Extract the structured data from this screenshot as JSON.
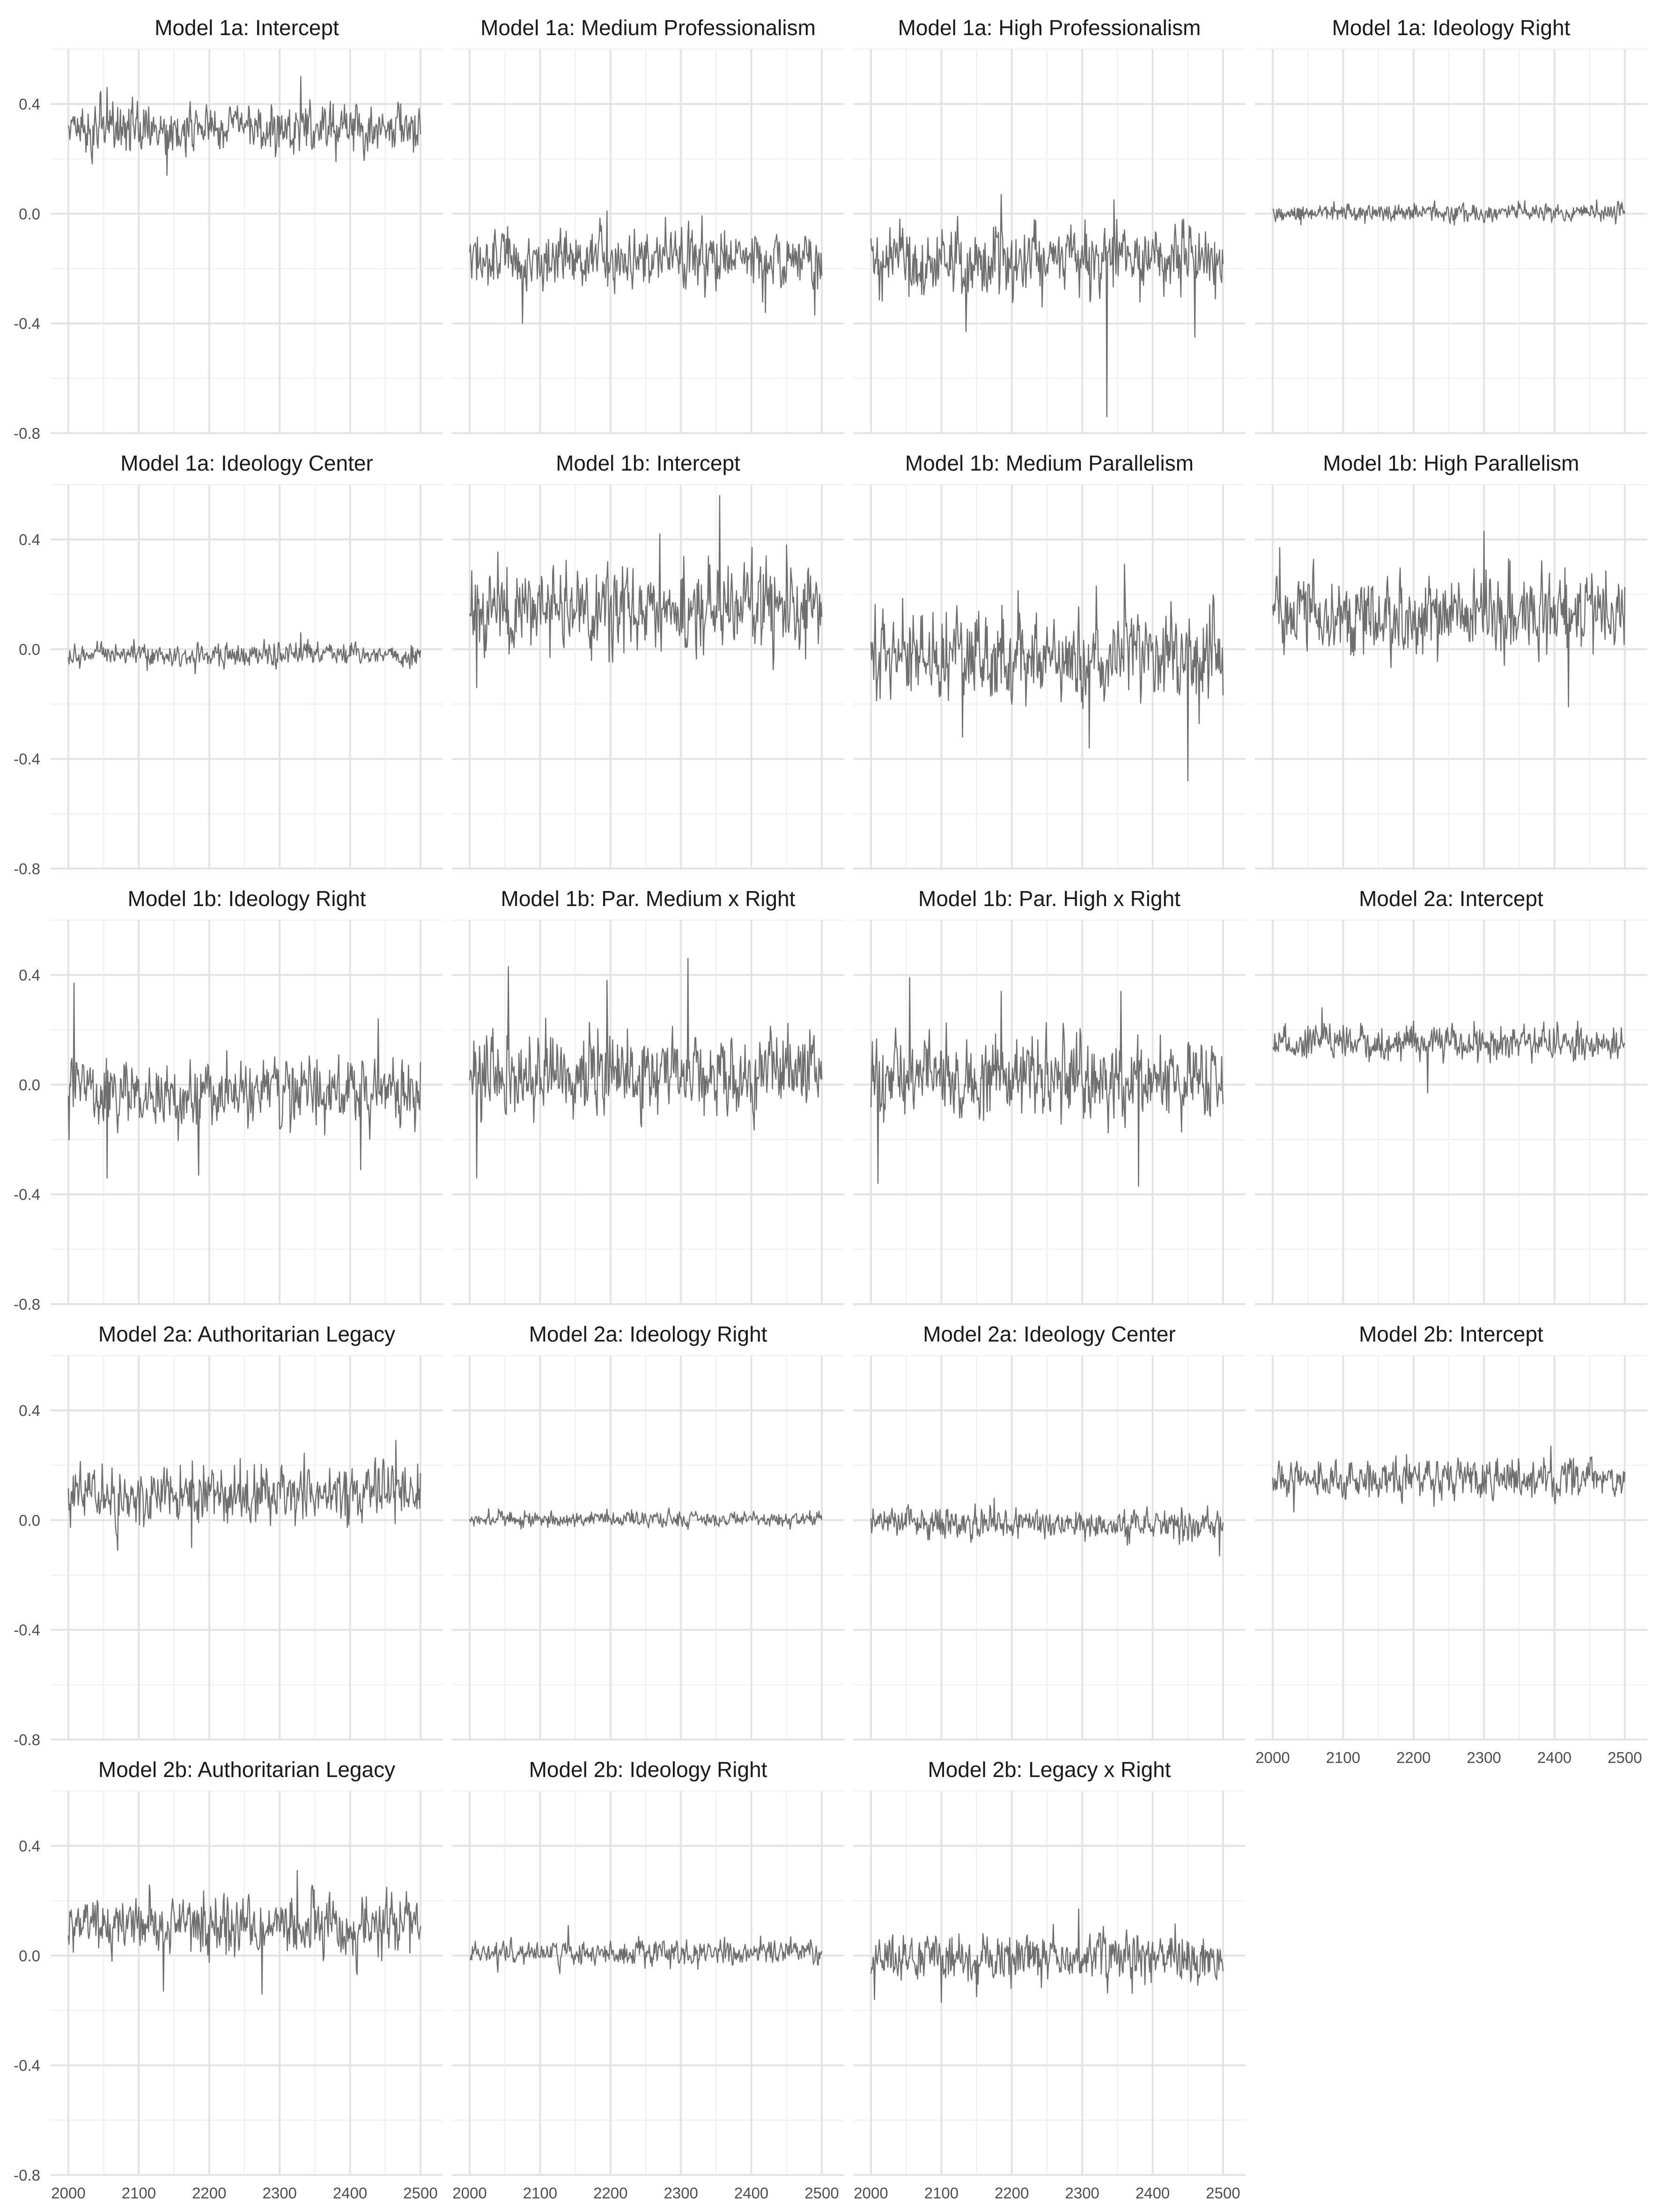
{
  "chart_data": {
    "type": "line",
    "layout": "facet grid, 4 columns x 5 rows",
    "x_ticks": [
      2000,
      2100,
      2200,
      2300,
      2400,
      2500
    ],
    "xlim": [
      2000,
      2500
    ],
    "y_ticks": [
      "0.4",
      "0.0",
      "-0.4",
      "-0.8"
    ],
    "ylim": [
      -0.8,
      0.6
    ],
    "grid": true,
    "line_color": "#6e6e6e",
    "panels": [
      {
        "title": "Model 1a: Intercept",
        "center": 0.31,
        "spread": 0.05,
        "outliers": [
          [
            2330,
            0.5
          ],
          [
            2055,
            0.46
          ],
          [
            2140,
            0.14
          ],
          [
            2380,
            0.19
          ]
        ]
      },
      {
        "title": "Model 1a: Medium Professionalism",
        "center": -0.16,
        "spread": 0.06,
        "outliers": [
          [
            2195,
            0.01
          ],
          [
            2075,
            -0.4
          ],
          [
            2420,
            -0.36
          ],
          [
            2490,
            -0.37
          ]
        ]
      },
      {
        "title": "Model 1a: High Professionalism",
        "center": -0.17,
        "spread": 0.07,
        "outliers": [
          [
            2135,
            -0.43
          ],
          [
            2335,
            -0.74
          ],
          [
            2460,
            -0.45
          ],
          [
            2185,
            0.07
          ],
          [
            2345,
            0.05
          ]
        ]
      },
      {
        "title": "Model 1a: Ideology Right",
        "center": 0.005,
        "spread": 0.018,
        "outliers": [
          [
            2460,
            0.05
          ],
          [
            2040,
            -0.04
          ]
        ]
      },
      {
        "title": "Model 1a: Ideology Center",
        "center": -0.02,
        "spread": 0.022,
        "outliers": [
          [
            2180,
            -0.09
          ],
          [
            2330,
            0.06
          ]
        ]
      },
      {
        "title": "Model 1b: Intercept",
        "center": 0.15,
        "spread": 0.09,
        "outliers": [
          [
            2355,
            0.56
          ],
          [
            2010,
            -0.14
          ],
          [
            2270,
            0.42
          ],
          [
            2450,
            0.38
          ]
        ]
      },
      {
        "title": "Model 1b: Medium Parallelism",
        "center": -0.02,
        "spread": 0.09,
        "outliers": [
          [
            2450,
            -0.48
          ],
          [
            2360,
            0.31
          ],
          [
            2130,
            -0.32
          ],
          [
            2310,
            -0.36
          ]
        ]
      },
      {
        "title": "Model 1b: High Parallelism",
        "center": 0.13,
        "spread": 0.08,
        "outliers": [
          [
            2300,
            0.43
          ],
          [
            2420,
            -0.21
          ],
          [
            2010,
            0.37
          ]
        ]
      },
      {
        "title": "Model 1b: Ideology Right",
        "center": -0.03,
        "spread": 0.07,
        "outliers": [
          [
            2008,
            0.37
          ],
          [
            2055,
            -0.34
          ],
          [
            2185,
            -0.33
          ],
          [
            2415,
            -0.31
          ],
          [
            2440,
            0.24
          ]
        ]
      },
      {
        "title": "Model 1b: Par. Medium x Right",
        "center": 0.04,
        "spread": 0.08,
        "outliers": [
          [
            2055,
            0.43
          ],
          [
            2195,
            0.38
          ],
          [
            2310,
            0.46
          ],
          [
            2010,
            -0.34
          ]
        ]
      },
      {
        "title": "Model 1b: Par. High x Right",
        "center": 0.02,
        "spread": 0.08,
        "outliers": [
          [
            2055,
            0.39
          ],
          [
            2185,
            0.34
          ],
          [
            2380,
            -0.37
          ],
          [
            2010,
            -0.36
          ],
          [
            2355,
            0.34
          ]
        ]
      },
      {
        "title": "Model 2a: Intercept",
        "center": 0.15,
        "spread": 0.035,
        "outliers": [
          [
            2220,
            -0.03
          ],
          [
            2070,
            0.28
          ]
        ]
      },
      {
        "title": "Model 2a: Authoritarian Legacy",
        "center": 0.1,
        "spread": 0.06,
        "outliers": [
          [
            2465,
            0.29
          ],
          [
            2070,
            -0.11
          ],
          [
            2175,
            -0.1
          ]
        ]
      },
      {
        "title": "Model 2a: Ideology Right",
        "center": 0.003,
        "spread": 0.015,
        "outliers": [
          [
            2195,
            0.04
          ]
        ]
      },
      {
        "title": "Model 2a: Ideology Center",
        "center": -0.015,
        "spread": 0.03,
        "outliers": [
          [
            2175,
            0.08
          ],
          [
            2495,
            -0.13
          ]
        ]
      },
      {
        "title": "Model 2b: Intercept",
        "center": 0.15,
        "spread": 0.04,
        "outliers": [
          [
            2395,
            0.27
          ],
          [
            2030,
            0.03
          ]
        ]
      },
      {
        "title": "Model 2b: Authoritarian Legacy",
        "center": 0.11,
        "spread": 0.06,
        "outliers": [
          [
            2325,
            0.31
          ],
          [
            2135,
            -0.13
          ],
          [
            2275,
            -0.14
          ]
        ]
      },
      {
        "title": "Model 2b: Ideology Right",
        "center": 0.01,
        "spread": 0.025,
        "outliers": [
          [
            2140,
            0.11
          ],
          [
            2040,
            -0.06
          ]
        ]
      },
      {
        "title": "Model 2b: Legacy x Right",
        "center": -0.01,
        "spread": 0.05,
        "outliers": [
          [
            2295,
            0.17
          ],
          [
            2100,
            -0.17
          ],
          [
            2005,
            -0.16
          ]
        ]
      }
    ]
  }
}
